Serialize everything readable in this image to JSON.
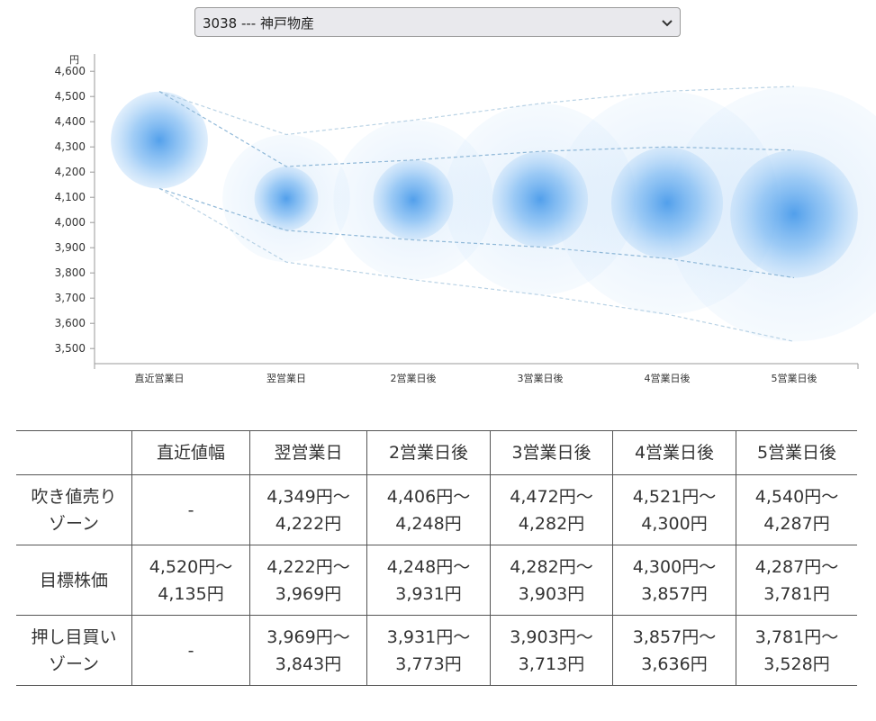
{
  "selector": {
    "value": "3038 --- 神戸物産"
  },
  "chart_data": {
    "type": "bubble-range",
    "unit_label": "円",
    "yticks": [
      3500,
      3600,
      3700,
      3800,
      3900,
      4000,
      4100,
      4200,
      4300,
      4400,
      4500,
      4600
    ],
    "ylim": [
      3440,
      4640
    ],
    "categories": [
      "直近営業日",
      "翌営業日",
      "2営業日後",
      "3営業日後",
      "4営業日後",
      "5営業日後"
    ],
    "center": [
      4327,
      4095,
      4090,
      4092,
      4078,
      4034
    ],
    "inner_upper": [
      4520,
      4222,
      4248,
      4282,
      4300,
      4287
    ],
    "inner_lower": [
      4135,
      3969,
      3931,
      3903,
      3857,
      3781
    ],
    "outer_upper": [
      4520,
      4349,
      4406,
      4472,
      4521,
      4540
    ],
    "outer_lower": [
      4135,
      3843,
      3773,
      3713,
      3636,
      3528
    ],
    "grid": false
  },
  "table": {
    "header": [
      "",
      "直近値幅",
      "翌営業日",
      "2営業日後",
      "3営業日後",
      "4営業日後",
      "5営業日後"
    ],
    "rows": [
      {
        "label": [
          "吹き値売り",
          "ゾーン"
        ],
        "cells": [
          [
            "-"
          ],
          [
            "4,349円～",
            "4,222円"
          ],
          [
            "4,406円～",
            "4,248円"
          ],
          [
            "4,472円～",
            "4,282円"
          ],
          [
            "4,521円～",
            "4,300円"
          ],
          [
            "4,540円～",
            "4,287円"
          ]
        ]
      },
      {
        "label": [
          "目標株価"
        ],
        "cells": [
          [
            "4,520円～",
            "4,135円"
          ],
          [
            "4,222円～",
            "3,969円"
          ],
          [
            "4,248円～",
            "3,931円"
          ],
          [
            "4,282円～",
            "3,903円"
          ],
          [
            "4,300円～",
            "3,857円"
          ],
          [
            "4,287円～",
            "3,781円"
          ]
        ]
      },
      {
        "label": [
          "押し目買い",
          "ゾーン"
        ],
        "cells": [
          [
            "-"
          ],
          [
            "3,969円～",
            "3,843円"
          ],
          [
            "3,931円～",
            "3,773円"
          ],
          [
            "3,903円～",
            "3,713円"
          ],
          [
            "3,857円～",
            "3,636円"
          ],
          [
            "3,781円～",
            "3,528円"
          ]
        ]
      }
    ]
  },
  "colors": {
    "bubble": "#3d8fe8",
    "axis": "#999999",
    "dash": "#8fb8d8",
    "border": "#555555"
  }
}
